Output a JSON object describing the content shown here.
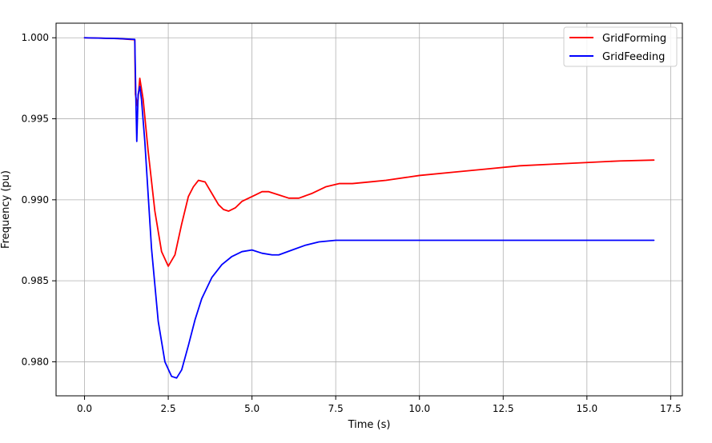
{
  "chart_data": {
    "type": "line",
    "title": "",
    "xlabel": "Time (s)",
    "ylabel": "Frequency (pu)",
    "xlim": [
      -0.85,
      17.85
    ],
    "ylim": [
      0.9779,
      1.0009
    ],
    "xticks": [
      0,
      2.5,
      5,
      7.5,
      10,
      12.5,
      15,
      17.5
    ],
    "xtick_labels": [
      "0.0",
      "2.5",
      "5.0",
      "7.5",
      "10.0",
      "12.5",
      "15.0",
      "17.5"
    ],
    "yticks": [
      0.98,
      0.985,
      0.99,
      0.995,
      1.0
    ],
    "ytick_labels": [
      "0.980",
      "0.985",
      "0.990",
      "0.995",
      "1.000"
    ],
    "grid": true,
    "legend_position": "top-right",
    "series": [
      {
        "name": "GridForming",
        "color": "#ff0000",
        "x": [
          0,
          1.0,
          1.5,
          1.52,
          1.58,
          1.65,
          1.75,
          1.9,
          2.1,
          2.3,
          2.5,
          2.7,
          2.9,
          3.1,
          3.25,
          3.4,
          3.6,
          3.8,
          4.0,
          4.15,
          4.3,
          4.5,
          4.7,
          4.9,
          5.0,
          5.1,
          5.3,
          5.5,
          5.8,
          6.1,
          6.4,
          6.8,
          7.2,
          7.6,
          8.0,
          8.5,
          9.0,
          10.0,
          11.0,
          12.0,
          13.0,
          14.0,
          15.0,
          16.0,
          17.0
        ],
        "y": [
          1.0,
          0.99995,
          0.99988,
          0.9965,
          0.9958,
          0.9975,
          0.9962,
          0.993,
          0.9893,
          0.9868,
          0.9859,
          0.9866,
          0.9885,
          0.9902,
          0.9908,
          0.9912,
          0.9911,
          0.9904,
          0.9897,
          0.9894,
          0.9893,
          0.9895,
          0.9899,
          0.9901,
          0.9902,
          0.9903,
          0.9905,
          0.9905,
          0.9903,
          0.9901,
          0.9901,
          0.9904,
          0.9908,
          0.991,
          0.991,
          0.9911,
          0.9912,
          0.9915,
          0.9917,
          0.9919,
          0.9921,
          0.9922,
          0.9923,
          0.9924,
          0.99245
        ]
      },
      {
        "name": "GridFeeding",
        "color": "#0000ff",
        "x": [
          0,
          1.0,
          1.5,
          1.54,
          1.56,
          1.6,
          1.65,
          1.7,
          1.8,
          2.0,
          2.2,
          2.4,
          2.6,
          2.75,
          2.9,
          3.1,
          3.3,
          3.5,
          3.8,
          4.1,
          4.4,
          4.7,
          5.0,
          5.3,
          5.6,
          5.8,
          6.2,
          6.6,
          7.0,
          7.5,
          8.0,
          8.5,
          9.0,
          10.0,
          11.0,
          12.0,
          13.0,
          14.0,
          15.0,
          16.0,
          17.0
        ],
        "y": [
          1.0,
          0.99995,
          0.9999,
          0.9955,
          0.9936,
          0.9965,
          0.997,
          0.9962,
          0.9936,
          0.987,
          0.9825,
          0.98,
          0.9791,
          0.979,
          0.9795,
          0.981,
          0.9826,
          0.9839,
          0.9852,
          0.986,
          0.9865,
          0.9868,
          0.9869,
          0.9867,
          0.9866,
          0.9866,
          0.9869,
          0.9872,
          0.9874,
          0.9875,
          0.9875,
          0.9875,
          0.9875,
          0.9875,
          0.9875,
          0.9875,
          0.9875,
          0.9875,
          0.9875,
          0.9875,
          0.9875
        ]
      }
    ]
  }
}
